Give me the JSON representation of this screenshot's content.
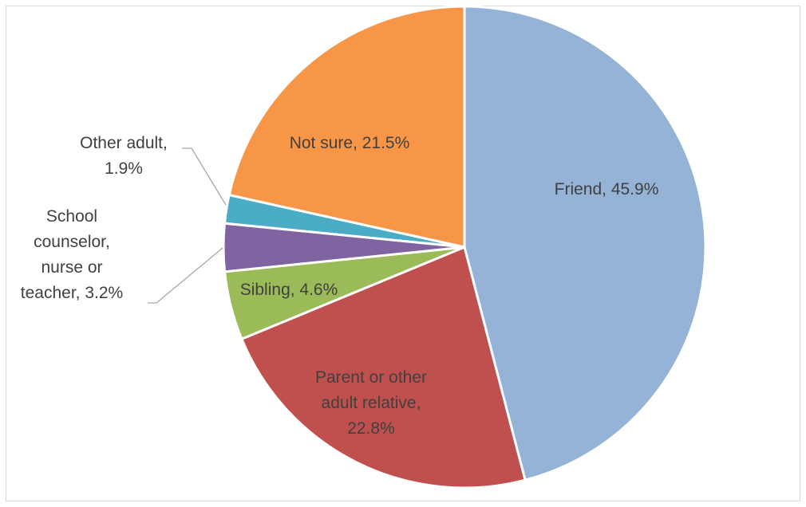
{
  "chart_data": {
    "type": "pie",
    "start_angle_deg": 0,
    "direction": "clockwise",
    "slices": [
      {
        "label": "Friend",
        "value": 45.9,
        "display": "Friend, 45.9%",
        "color": "#95b3d7"
      },
      {
        "label": "Parent or other adult relative",
        "value": 22.8,
        "display": "Parent or other adult relative, 22.8%",
        "color": "#c0504d"
      },
      {
        "label": "Sibling",
        "value": 4.6,
        "display": "Sibling, 4.6%",
        "color": "#9bbb59"
      },
      {
        "label": "School counselor, nurse or teacher",
        "value": 3.2,
        "display": "School counselor, nurse or teacher, 3.2%",
        "color": "#8064a2"
      },
      {
        "label": "Other adult",
        "value": 1.9,
        "display": "Other adult, 1.9%",
        "color": "#4bacc6"
      },
      {
        "label": "Not sure",
        "value": 21.5,
        "display": "Not sure, 21.5%",
        "color": "#f79646"
      }
    ]
  }
}
